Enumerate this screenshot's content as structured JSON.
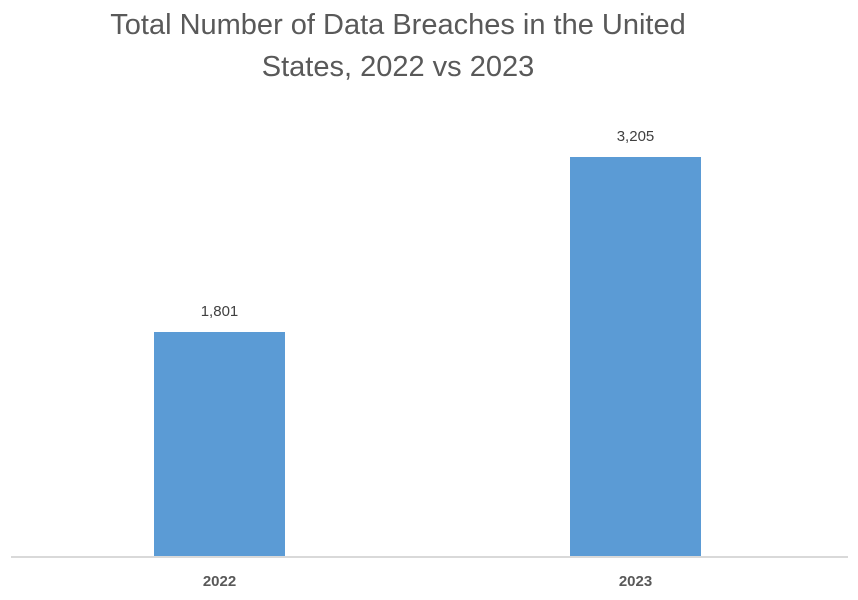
{
  "chart_data": {
    "type": "bar",
    "title": "Total Number of Data Breaches in the United States, 2022 vs 2023",
    "title_lines": [
      "Total Number of Data Breaches in the United",
      "States, 2022 vs 2023"
    ],
    "categories": [
      "2022",
      "2023"
    ],
    "values": [
      1801,
      3205
    ],
    "data_labels": [
      "1,801",
      "3,205"
    ],
    "xlabel": "",
    "ylabel": "",
    "ylim": [
      0,
      3500
    ],
    "grid": false,
    "legend": null,
    "bar_color": "#5b9bd5"
  }
}
